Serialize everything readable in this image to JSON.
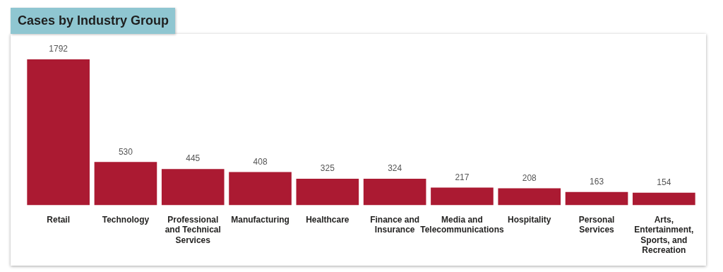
{
  "chart_data": {
    "type": "bar",
    "title": "Cases by Industry Group",
    "categories": [
      "Retail",
      "Technology",
      "Professional and Technical Services",
      "Manufacturing",
      "Healthcare",
      "Finance and Insurance",
      "Media and Telecommunications",
      "Hospitality",
      "Personal Services",
      "Arts, Entertainment, Sports, and Recreation"
    ],
    "values": [
      1792,
      530,
      445,
      408,
      325,
      324,
      217,
      208,
      163,
      154
    ],
    "color": "#ab1a32",
    "data_labels": true,
    "grid": false,
    "legend": false
  }
}
